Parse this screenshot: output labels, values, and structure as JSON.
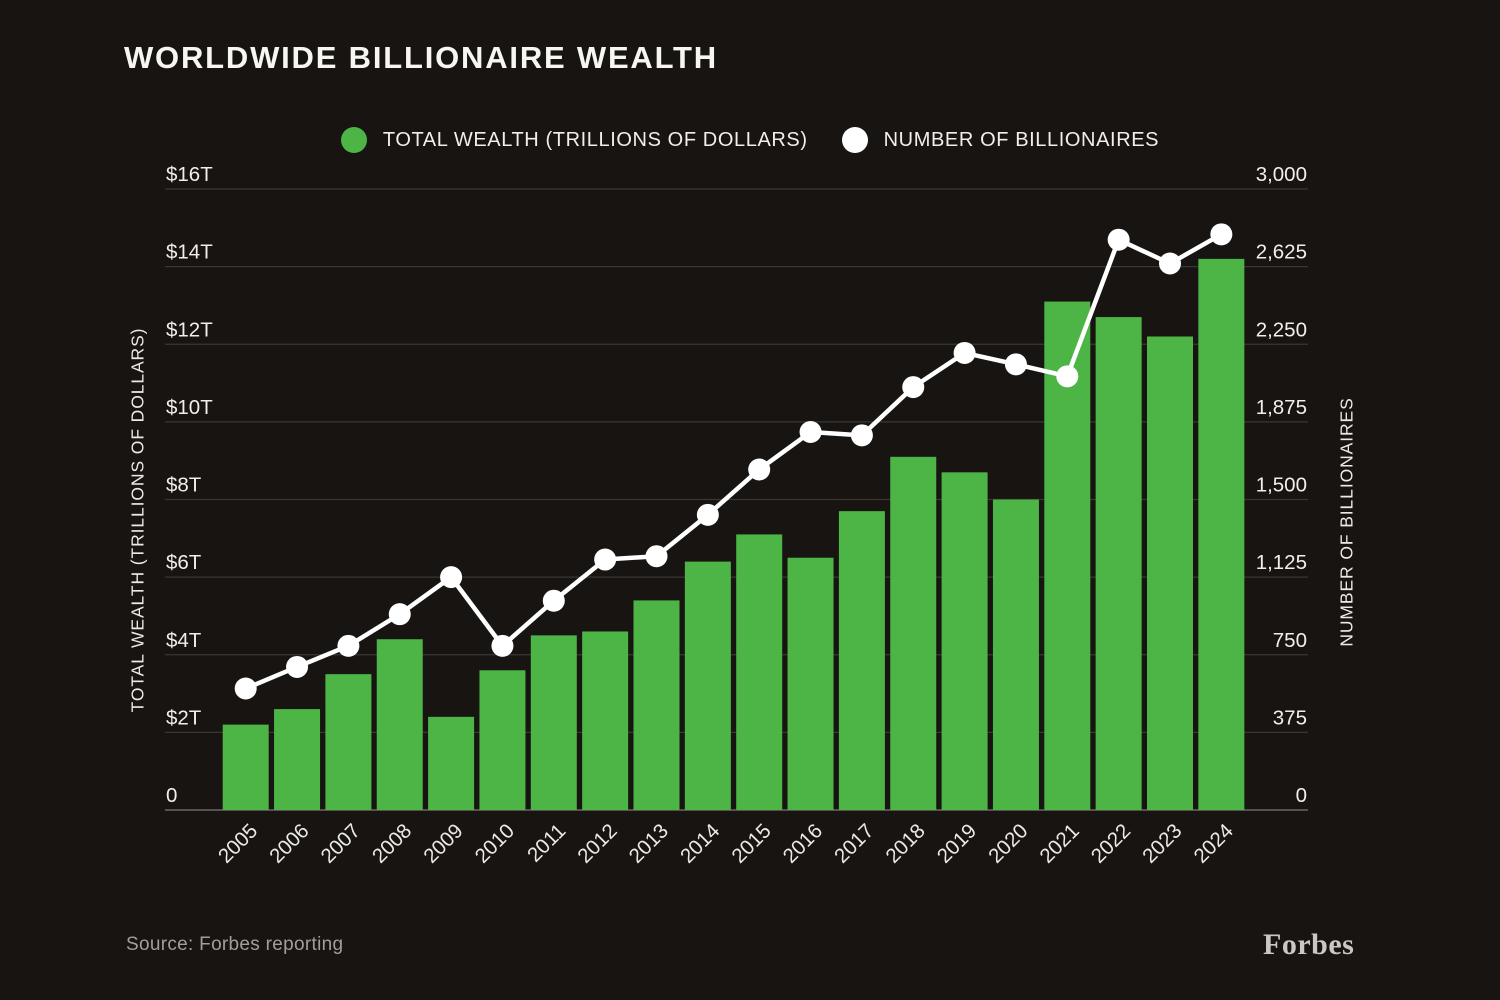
{
  "footer": {
    "source": "Source: Forbes reporting",
    "brand": "Forbes"
  },
  "colors": {
    "background": "#171412",
    "bar_green": "#4db546",
    "line_white": "#ffffff",
    "grid": "#3a3733",
    "baseline": "#56534e",
    "text": "#f2efea",
    "muted_text": "#a39e97"
  },
  "chart_data": {
    "type": "bar+line combo",
    "title": "WORLDWIDE BILLIONAIRE WEALTH",
    "categories": [
      "2005",
      "2006",
      "2007",
      "2008",
      "2009",
      "2010",
      "2011",
      "2012",
      "2013",
      "2014",
      "2015",
      "2016",
      "2017",
      "2018",
      "2019",
      "2020",
      "2021",
      "2022",
      "2023",
      "2024"
    ],
    "series": [
      {
        "name": "TOTAL WEALTH (TRILLIONS OF DOLLARS)",
        "type": "bar",
        "axis": "left",
        "color": "#4db546",
        "values": [
          2.2,
          2.6,
          3.5,
          4.4,
          2.4,
          3.6,
          4.5,
          4.6,
          5.4,
          6.4,
          7.1,
          6.5,
          7.7,
          9.1,
          8.7,
          8.0,
          13.1,
          12.7,
          12.2,
          14.2
        ]
      },
      {
        "name": "NUMBER OF BILLIONAIRES",
        "type": "line",
        "axis": "right",
        "color": "#ffffff",
        "values": [
          587,
          691,
          793,
          946,
          1125,
          793,
          1011,
          1210,
          1226,
          1426,
          1645,
          1826,
          1810,
          2043,
          2208,
          2153,
          2095,
          2755,
          2640,
          2781
        ]
      }
    ],
    "left_axis": {
      "label": "TOTAL WEALTH (TRILLIONS OF DOLLARS)",
      "range": [
        0,
        16
      ],
      "ticks": [
        "$16T",
        "$14T",
        "$12T",
        "$10T",
        "$8T",
        "$6T",
        "$4T",
        "$2T",
        "0"
      ]
    },
    "right_axis": {
      "label": "NUMBER OF BILLIONAIRES",
      "range": [
        0,
        3000
      ],
      "ticks": [
        "3,000",
        "2,625",
        "2,250",
        "1,875",
        "1,500",
        "1,125",
        "750",
        "375",
        "0"
      ]
    },
    "grid": true,
    "legend_position": "top"
  }
}
